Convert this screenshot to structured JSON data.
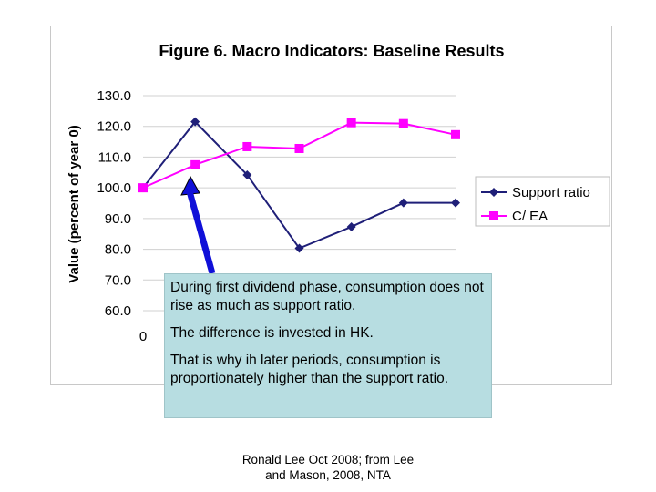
{
  "chart_data": {
    "type": "line",
    "title": "Figure 6. Macro Indicators: Baseline Results",
    "ylabel": "Value (percent of year 0)",
    "xlabel": "",
    "x_tick_labels": [
      "0"
    ],
    "y_ticks": [
      "60.0",
      "70.0",
      "80.0",
      "90.0",
      "100.0",
      "110.0",
      "120.0",
      "130.0"
    ],
    "ylim": [
      60,
      130
    ],
    "x": [
      0,
      1,
      2,
      3,
      4,
      5,
      6
    ],
    "grid": "horizontal",
    "legend_position": "right",
    "series": [
      {
        "name": "Support ratio",
        "color": "#1f1f78",
        "marker": "diamond",
        "values": [
          100,
          121.5,
          104.2,
          80.3,
          87.3,
          95.1,
          95.1
        ]
      },
      {
        "name": "C/ EA",
        "color": "#ff00ff",
        "marker": "square",
        "values": [
          100,
          107.5,
          113.4,
          112.8,
          121.2,
          120.9,
          117.3
        ]
      }
    ]
  },
  "annotation": {
    "paragraphs": [
      "During first dividend phase, consumption does not rise as much as support ratio.",
      "The difference is invested in HK.",
      "That is why ih later periods, consumption is proportionately higher than the support ratio."
    ],
    "arrow_color": "#1010d8"
  },
  "credit": {
    "line1": "Ronald Lee Oct 2008; from Lee",
    "line2": "and Mason, 2008, NTA"
  }
}
